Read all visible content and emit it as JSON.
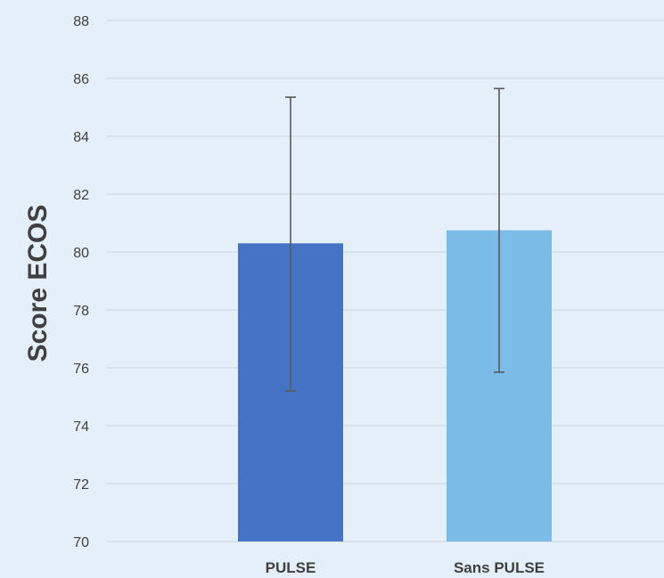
{
  "chart_data": {
    "type": "bar",
    "title": "",
    "xlabel": "",
    "ylabel": "Score ECOS",
    "ylim": [
      70,
      88
    ],
    "yticks": [
      70,
      72,
      74,
      76,
      78,
      80,
      82,
      84,
      86,
      88
    ],
    "grid": true,
    "categories": [
      "PULSE",
      "Sans PULSE"
    ],
    "values": [
      80.3,
      80.75
    ],
    "error_bars": [
      {
        "low": 75.2,
        "high": 85.35
      },
      {
        "low": 75.85,
        "high": 85.65
      }
    ],
    "colors": [
      "#4472c4",
      "#7abbe8"
    ]
  }
}
